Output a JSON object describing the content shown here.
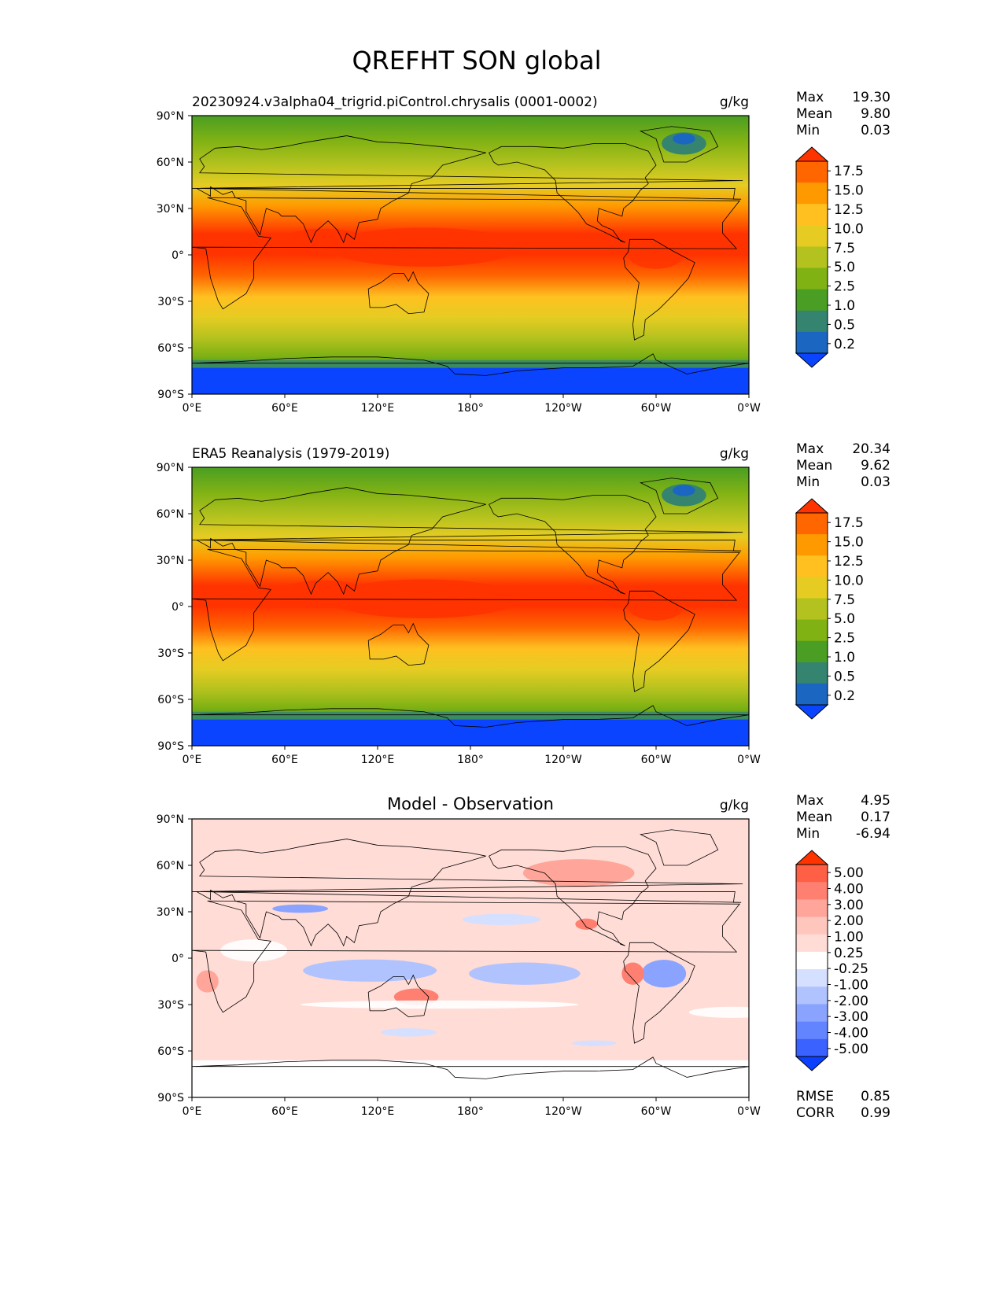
{
  "figure": {
    "title": "QREFHT SON global"
  },
  "chart_data": [
    {
      "type": "heatmap",
      "title": "20230924.v3alpha04_trigrid.piControl.chrysalis (0001-0002)",
      "units": "g/kg",
      "stats": [
        {
          "label": "Max",
          "value": "19.30"
        },
        {
          "label": "Mean",
          "value": "9.80"
        },
        {
          "label": "Min",
          "value": "0.03"
        }
      ],
      "xticks": [
        "0°E",
        "60°E",
        "120°E",
        "180°",
        "120°W",
        "60°W",
        "0°W"
      ],
      "yticks": [
        "90°N",
        "60°N",
        "30°N",
        "0°",
        "30°S",
        "60°S",
        "90°S"
      ],
      "xlim": [
        0,
        360
      ],
      "ylim": [
        -90,
        90
      ],
      "colorbar": {
        "labels": [
          "17.5",
          "15.0",
          "12.5",
          "10.0",
          "7.5",
          "5.0",
          "2.5",
          "1.0",
          "0.5",
          "0.2"
        ],
        "colors": [
          "#ff3300",
          "#ff6600",
          "#ff9900",
          "#ffc020",
          "#e6cc22",
          "#b3c21e",
          "#80b214",
          "#4a9e23",
          "#348470",
          "#1a66c0",
          "#0b44ff"
        ]
      }
    },
    {
      "type": "heatmap",
      "title": "ERA5 Reanalysis (1979-2019)",
      "units": "g/kg",
      "stats": [
        {
          "label": "Max",
          "value": "20.34"
        },
        {
          "label": "Mean",
          "value": "9.62"
        },
        {
          "label": "Min",
          "value": "0.03"
        }
      ],
      "xticks": [
        "0°E",
        "60°E",
        "120°E",
        "180°",
        "120°W",
        "60°W",
        "0°W"
      ],
      "yticks": [
        "90°N",
        "60°N",
        "30°N",
        "0°",
        "30°S",
        "60°S",
        "90°S"
      ],
      "xlim": [
        0,
        360
      ],
      "ylim": [
        -90,
        90
      ],
      "colorbar": {
        "labels": [
          "17.5",
          "15.0",
          "12.5",
          "10.0",
          "7.5",
          "5.0",
          "2.5",
          "1.0",
          "0.5",
          "0.2"
        ],
        "colors": [
          "#ff3300",
          "#ff6600",
          "#ff9900",
          "#ffc020",
          "#e6cc22",
          "#b3c21e",
          "#80b214",
          "#4a9e23",
          "#348470",
          "#1a66c0",
          "#0b44ff"
        ]
      }
    },
    {
      "type": "heatmap",
      "title": "Model - Observation",
      "units": "g/kg",
      "stats": [
        {
          "label": "Max",
          "value": "4.95"
        },
        {
          "label": "Mean",
          "value": "0.17"
        },
        {
          "label": "Min",
          "value": "-6.94"
        }
      ],
      "metrics": [
        {
          "label": "RMSE",
          "value": "0.85"
        },
        {
          "label": "CORR",
          "value": "0.99"
        }
      ],
      "xticks": [
        "0°E",
        "60°E",
        "120°E",
        "180°",
        "120°W",
        "60°W",
        "0°W"
      ],
      "yticks": [
        "90°N",
        "60°N",
        "30°N",
        "0°",
        "30°S",
        "60°S",
        "90°S"
      ],
      "xlim": [
        0,
        360
      ],
      "ylim": [
        -90,
        90
      ],
      "colorbar": {
        "labels": [
          "5.00",
          "4.00",
          "3.00",
          "2.00",
          "1.00",
          "0.25",
          "-0.25",
          "-1.00",
          "-2.00",
          "-3.00",
          "-4.00",
          "-5.00"
        ],
        "colors": [
          "#ff3300",
          "#ff5f45",
          "#ff7f70",
          "#ffa599",
          "#ffc6bd",
          "#ffdcd6",
          "#ffffff",
          "#d5dfff",
          "#b0c3ff",
          "#8aa3ff",
          "#6384ff",
          "#3a62ff",
          "#0b40ff"
        ]
      }
    }
  ]
}
